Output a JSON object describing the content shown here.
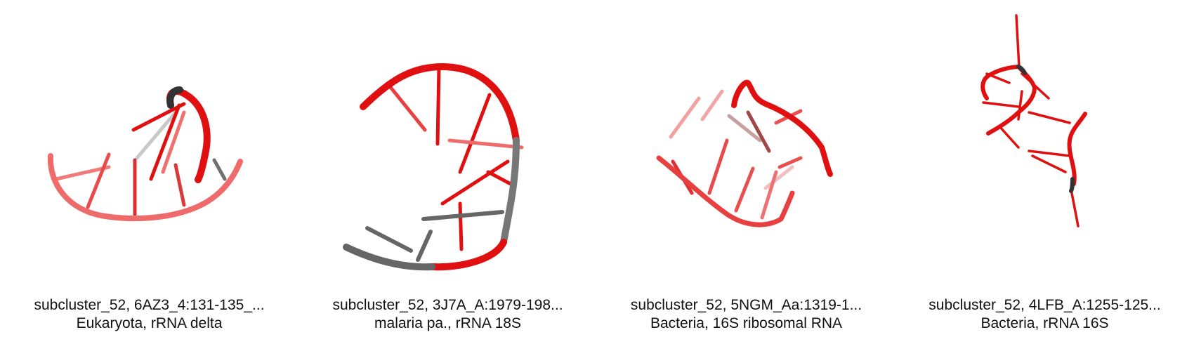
{
  "panels": [
    {
      "id_line": "subcluster_52, 6AZ3_4:131-135_...",
      "desc_line": "Eukaryota, rRNA delta"
    },
    {
      "id_line": "subcluster_52, 3J7A_A:1979-198...",
      "desc_line": "malaria pa., rRNA 18S"
    },
    {
      "id_line": "subcluster_52, 5NGM_Aa:1319-1...",
      "desc_line": "Bacteria, 16S ribosomal RNA"
    },
    {
      "id_line": "subcluster_52, 4LFB_A:1255-125...",
      "desc_line": "Bacteria, rRNA 16S"
    }
  ],
  "colors": {
    "red": "#e01010",
    "light_red": "#ef6a6a",
    "gray": "#666666",
    "dark": "#333333"
  }
}
